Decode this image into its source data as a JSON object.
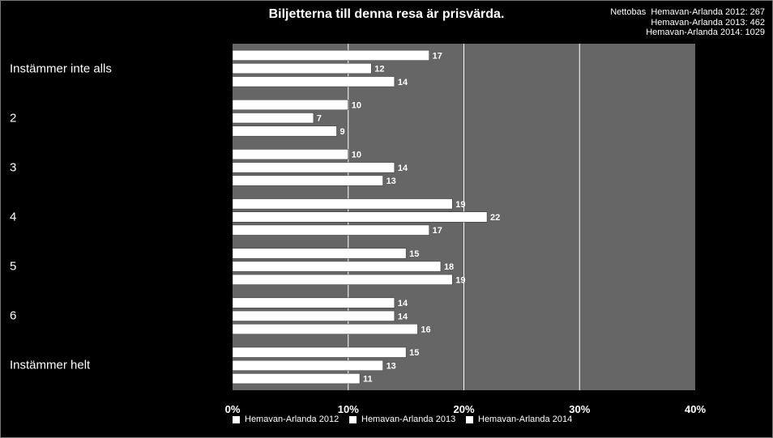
{
  "chart_data": {
    "type": "bar",
    "orientation": "horizontal",
    "title": "Biljetterna till denna resa är prisvärda.",
    "nettobas": {
      "label": "Nettobas",
      "lines": [
        "Hemavan-Arlanda 2012: 267",
        "Hemavan-Arlanda 2013: 462",
        "Hemavan-Arlanda 2014: 1029"
      ]
    },
    "categories": [
      "Instämmer inte alls",
      "2",
      "3",
      "4",
      "5",
      "6",
      "Instämmer helt"
    ],
    "series": [
      {
        "name": "Hemavan-Arlanda 2012",
        "values": [
          17,
          10,
          10,
          19,
          15,
          14,
          15
        ]
      },
      {
        "name": "Hemavan-Arlanda 2013",
        "values": [
          12,
          7,
          14,
          22,
          18,
          14,
          13
        ]
      },
      {
        "name": "Hemavan-Arlanda 2014",
        "values": [
          14,
          9,
          13,
          17,
          19,
          16,
          11
        ]
      }
    ],
    "xlim": [
      0,
      40
    ],
    "xticks": [
      0,
      10,
      20,
      30,
      40
    ],
    "xtick_labels": [
      "0%",
      "10%",
      "20%",
      "30%",
      "40%"
    ],
    "grid": true,
    "legend_position": "bottom",
    "colors": {
      "background": "#000000",
      "plot_area": "#666666",
      "bars": "#ffffff",
      "grid": "#ffffff",
      "text": "#ffffff"
    }
  }
}
